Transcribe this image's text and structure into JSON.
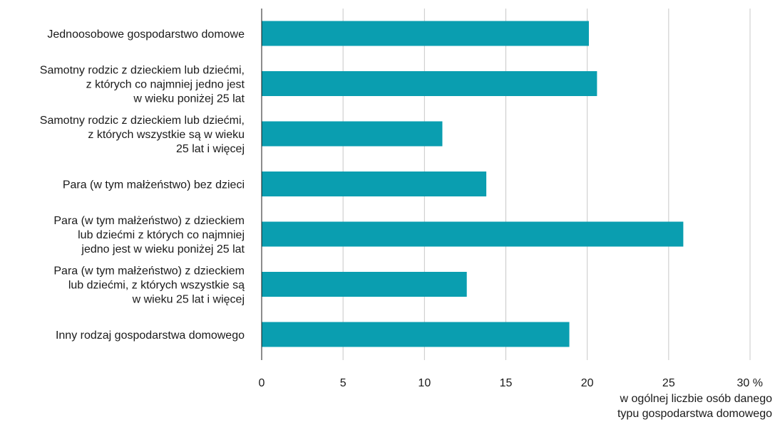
{
  "chart_data": {
    "type": "bar",
    "orientation": "horizontal",
    "categories": [
      [
        "Jednoosobowe gospodarstwo domowe"
      ],
      [
        "Samotny rodzic z dzieckiem lub dziećmi,",
        "z których co najmniej jedno jest",
        "w wieku poniżej 25 lat"
      ],
      [
        "Samotny rodzic z dzieckiem lub dziećmi,",
        "z których wszystkie są w wieku",
        "25 lat i więcej"
      ],
      [
        "Para (w tym małżeństwo) bez dzieci"
      ],
      [
        "Para (w tym małżeństwo) z dzieckiem",
        "lub dziećmi z których co najmniej",
        "jedno jest w wieku poniżej 25 lat"
      ],
      [
        "Para (w tym małżeństwo) z dzieckiem",
        "lub dziećmi, z których wszystkie są",
        "w wieku 25 lat i więcej"
      ],
      [
        "Inny rodzaj gospodarstwa domowego"
      ]
    ],
    "values": [
      20.1,
      20.6,
      11.1,
      13.8,
      25.9,
      12.6,
      18.9
    ],
    "xlim": [
      0,
      30
    ],
    "xticks": [
      "0",
      "5",
      "10",
      "15",
      "20",
      "25",
      "30 %"
    ],
    "xlabel": [
      "w ogólnej liczbie osób danego",
      "typu gospodarstwa domowego"
    ],
    "title": "",
    "grid": "vertical",
    "bar_color": "#0a9eb0",
    "grid_color": "#c8c8c8"
  }
}
